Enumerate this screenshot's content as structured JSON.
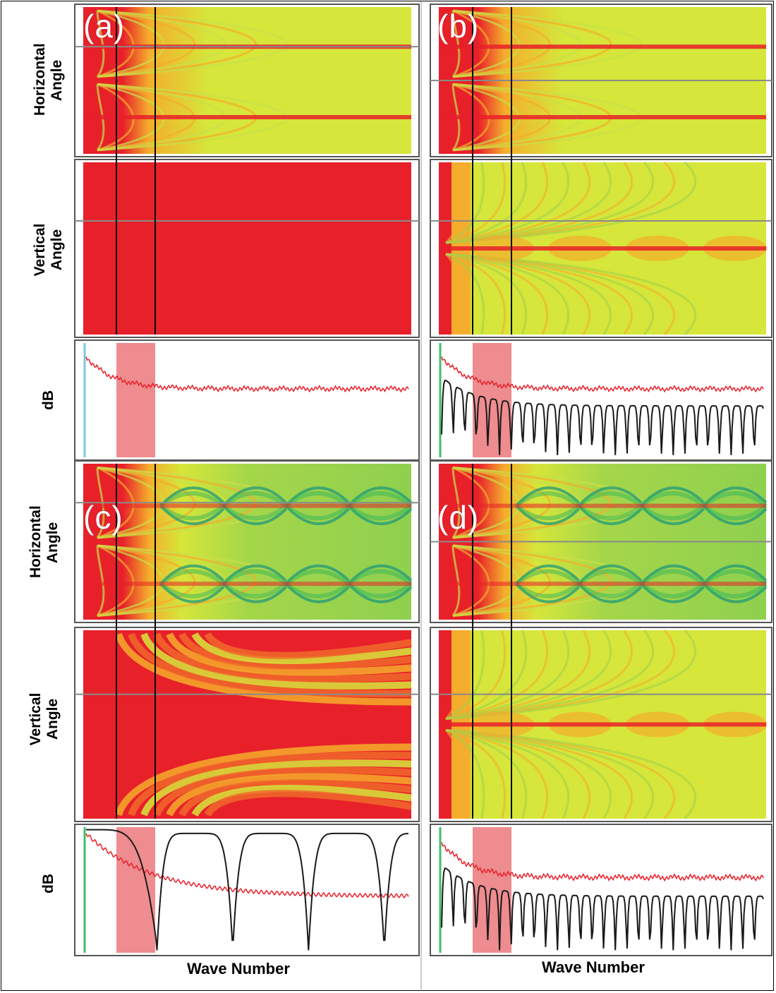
{
  "labels": {
    "row_horizontal_angle": [
      "Horizontal",
      "Angle"
    ],
    "row_vertical_angle": [
      "Vertical",
      "Angle"
    ],
    "row_db": "dB",
    "x_axis": "Wave Number"
  },
  "colors": {
    "high": "#e8202a",
    "mid": "#f4ad2c",
    "low": "#d6e63a",
    "deep": "#2bab5a",
    "line_red": "#e8202a",
    "line_black": "#1a1a1a",
    "band": "#ee8c8f",
    "marker": "#000000"
  },
  "chart_data": [
    {
      "panel": "(a)",
      "type": "heatmap",
      "variant": "horizontal",
      "ylabel": "Horizontal Angle",
      "xlabel": ""
    },
    {
      "panel": "(a)",
      "type": "heatmap",
      "variant": "vertical-flat",
      "ylabel": "Vertical Angle",
      "xlabel": ""
    },
    {
      "panel": "(a)",
      "type": "line",
      "ylabel": "dB",
      "xlabel": "",
      "series": [
        {
          "color": "red",
          "shape": "decay"
        }
      ]
    },
    {
      "panel": "(b)",
      "type": "heatmap",
      "variant": "horizontal",
      "ylabel": "",
      "xlabel": ""
    },
    {
      "panel": "(b)",
      "type": "heatmap",
      "variant": "vertical-ripple",
      "ylabel": "",
      "xlabel": ""
    },
    {
      "panel": "(b)",
      "type": "line",
      "ylabel": "",
      "xlabel": "",
      "series": [
        {
          "color": "red",
          "shape": "decay"
        },
        {
          "color": "black",
          "shape": "dense-lobes"
        }
      ]
    },
    {
      "panel": "(c)",
      "type": "heatmap",
      "variant": "horizontal-green",
      "ylabel": "Horizontal Angle",
      "xlabel": ""
    },
    {
      "panel": "(c)",
      "type": "heatmap",
      "variant": "vertical-bands",
      "ylabel": "Vertical Angle",
      "xlabel": ""
    },
    {
      "panel": "(c)",
      "type": "line",
      "ylabel": "dB",
      "xlabel": "Wave Number",
      "series": [
        {
          "color": "red",
          "shape": "decay"
        },
        {
          "color": "black",
          "shape": "wide-lobes"
        }
      ]
    },
    {
      "panel": "(d)",
      "type": "heatmap",
      "variant": "horizontal-green",
      "ylabel": "",
      "xlabel": ""
    },
    {
      "panel": "(d)",
      "type": "heatmap",
      "variant": "vertical-ripple",
      "ylabel": "",
      "xlabel": ""
    },
    {
      "panel": "(d)",
      "type": "line",
      "ylabel": "",
      "xlabel": "Wave Number",
      "series": [
        {
          "color": "red",
          "shape": "decay"
        },
        {
          "color": "black",
          "shape": "dense-lobes"
        }
      ]
    }
  ]
}
